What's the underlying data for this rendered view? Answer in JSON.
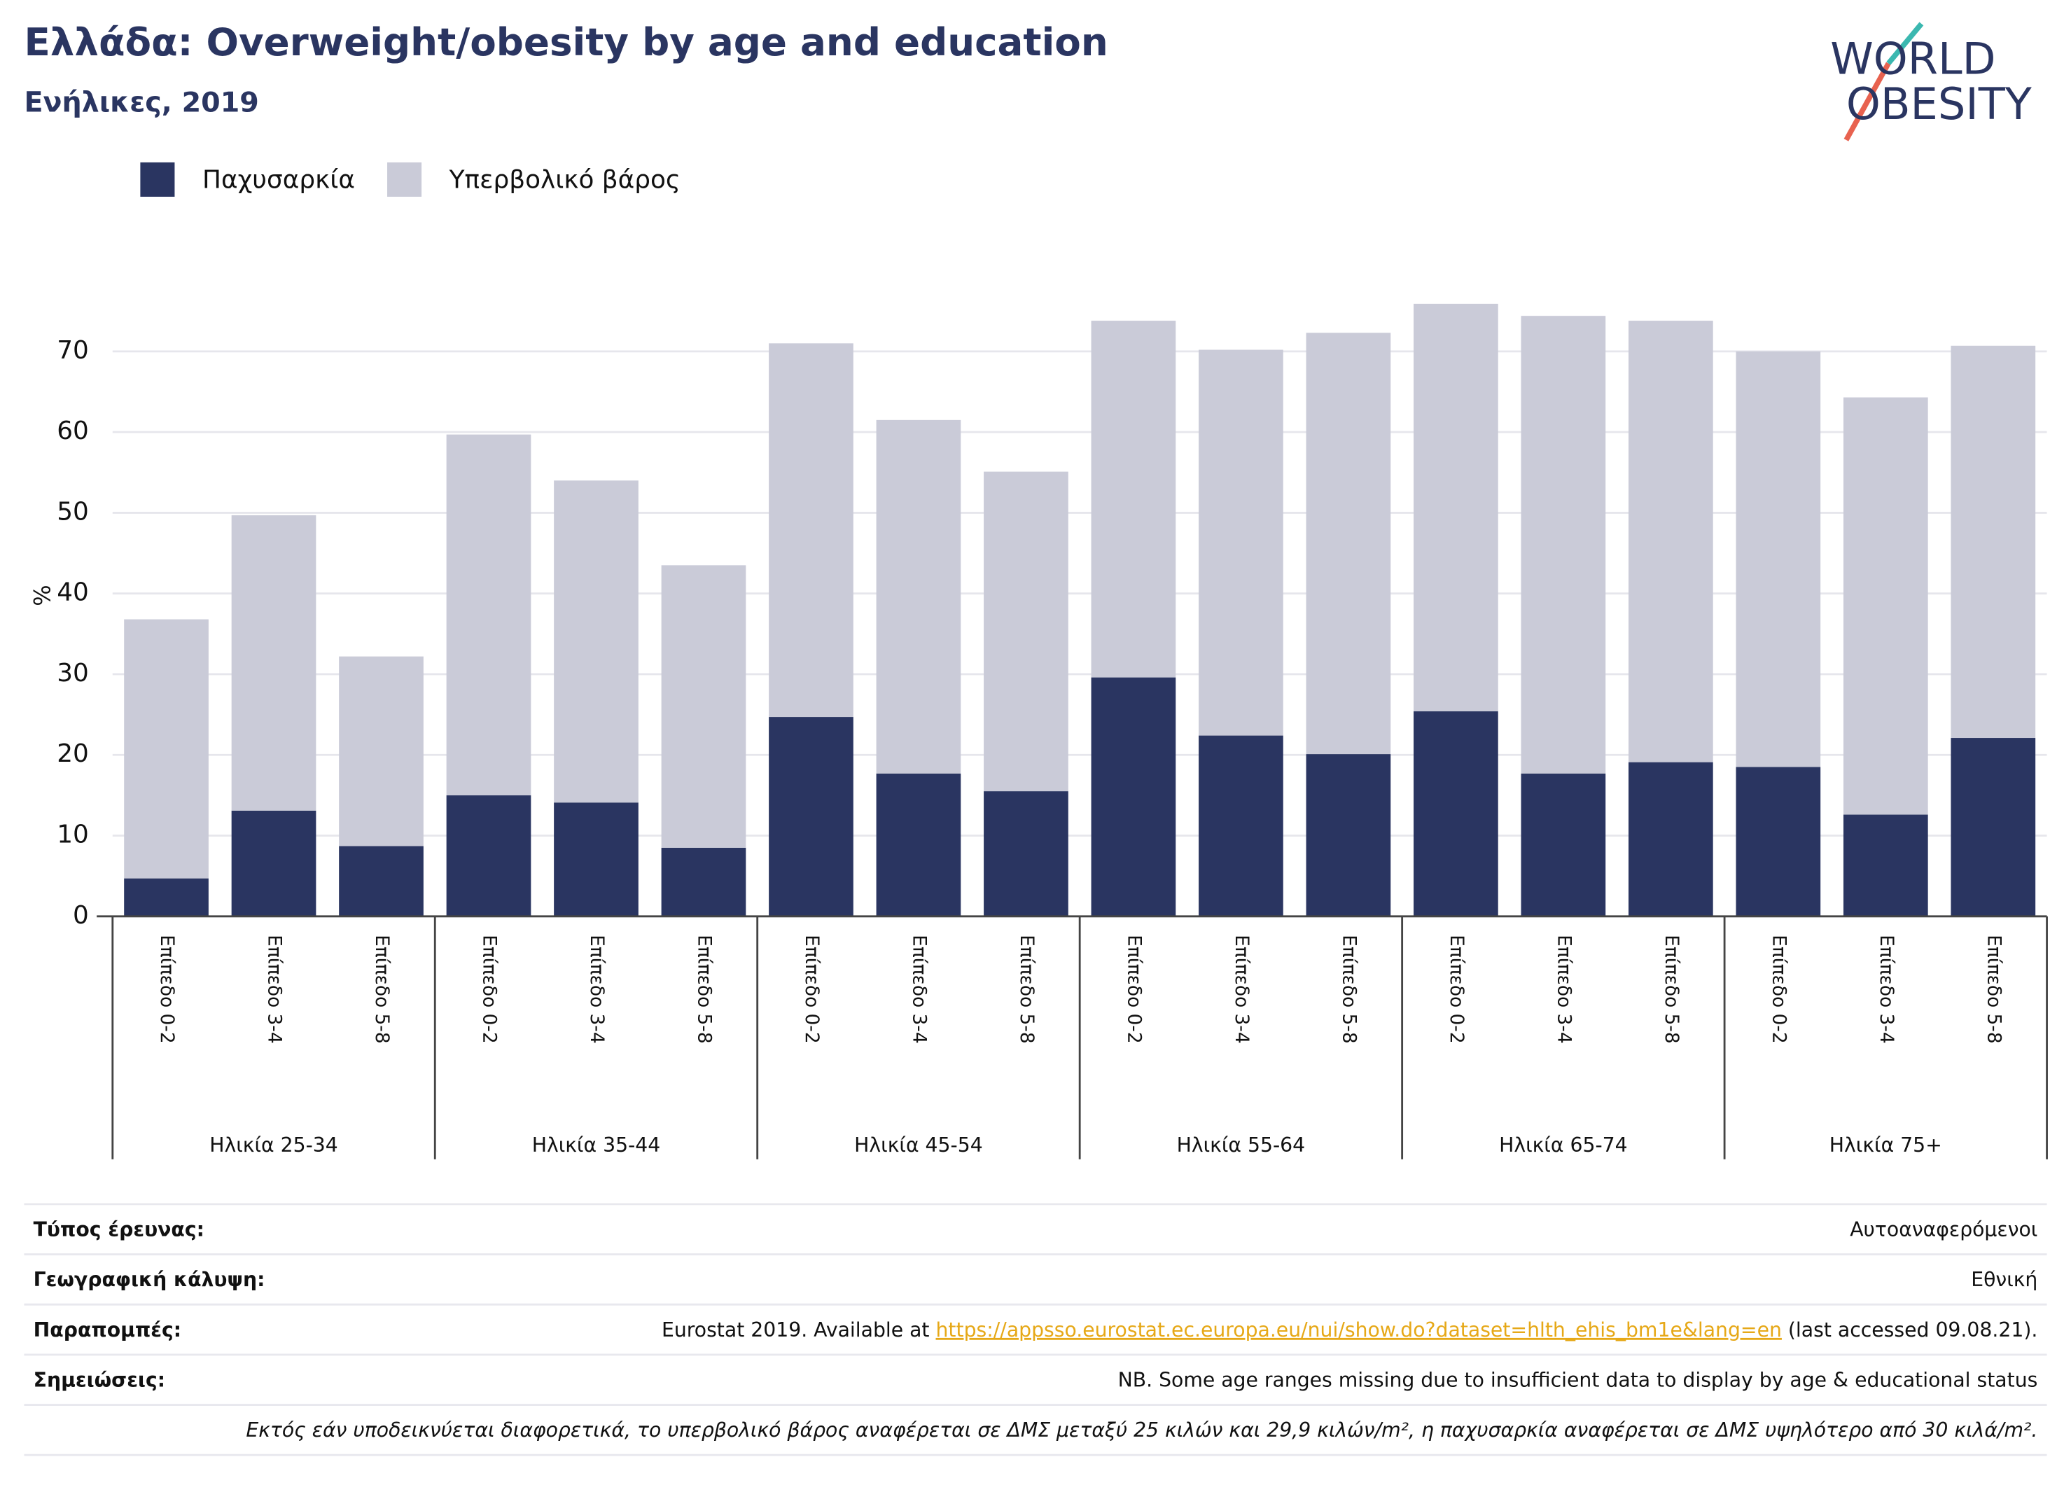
{
  "chart_data": {
    "type": "stacked_bar",
    "title": "Ελλάδα: Overweight/obesity by age and education",
    "subtitle": "Ενήλικες, 2019",
    "ylabel": "%",
    "categories": [
      "Επίπεδο 0-2",
      "Επίπεδο 3-4",
      "Επίπεδο 5-8",
      "Επίπεδο 0-2",
      "Επίπεδο 3-4",
      "Επίπεδο 5-8",
      "Επίπεδο 0-2",
      "Επίπεδο 3-4",
      "Επίπεδο 5-8",
      "Επίπεδο 0-2",
      "Επίπεδο 3-4",
      "Επίπεδο 5-8",
      "Επίπεδο 0-2",
      "Επίπεδο 3-4",
      "Επίπεδο 5-8",
      "Επίπεδο 0-2",
      "Επίπεδο 3-4",
      "Επίπεδο 5-8"
    ],
    "groups": [
      "Ηλικία 25-34",
      "Ηλικία 35-44",
      "Ηλικία 45-54",
      "Ηλικία 55-64",
      "Ηλικία 65-74",
      "Ηλικία 75+"
    ],
    "series": [
      {
        "name": "Παχυσαρκία",
        "color": "#2a3561",
        "values": [
          4.7,
          13.1,
          8.7,
          15.0,
          14.1,
          8.5,
          24.7,
          17.7,
          15.5,
          29.6,
          22.4,
          20.1,
          25.4,
          17.7,
          19.1,
          18.5,
          12.6,
          22.1
        ]
      },
      {
        "name": "Υπερβολικό βάρος",
        "color": "#cacbd8",
        "values": [
          32.1,
          36.6,
          23.5,
          44.7,
          39.9,
          35.0,
          46.3,
          43.8,
          39.6,
          44.2,
          47.8,
          52.2,
          50.5,
          56.7,
          54.7,
          51.5,
          51.7,
          48.6
        ]
      }
    ],
    "ylim": [
      0,
      80
    ],
    "yticks": [
      0,
      10,
      20,
      30,
      40,
      50,
      60,
      70
    ],
    "grid": true,
    "legend": "top-left",
    "logo": [
      "WORLD",
      "OBESITY"
    ]
  },
  "footer": {
    "rows": [
      {
        "label": "Τύπος έρευνας:",
        "value": "Αυτοαναφερόμενοι"
      },
      {
        "label": "Γεωγραφική κάλυψη:",
        "value": "Εθνική"
      },
      {
        "label": "Παραπομπές:",
        "value": [
          "Eurostat 2019. Available at ",
          "https://appsso.eurostat.ec.europa.eu/nui/show.do?dataset=hlth_ehis_bm1e&lang=en",
          " (last accessed 09.08.21)."
        ]
      },
      {
        "label": "Σημειώσεις:",
        "value": "NB. Some age ranges missing due to insufficient data to display by age & educational status"
      }
    ],
    "note": "Εκτός εάν υποδεικνύεται διαφορετικά, το υπερβολικό βάρος αναφέρεται σε ΔΜΣ μεταξύ 25 κιλών και 29,9 κιλών/m², η παχυσαρκία αναφέρεται σε ΔΜΣ υψηλότερο από 30 κιλά/m²."
  }
}
